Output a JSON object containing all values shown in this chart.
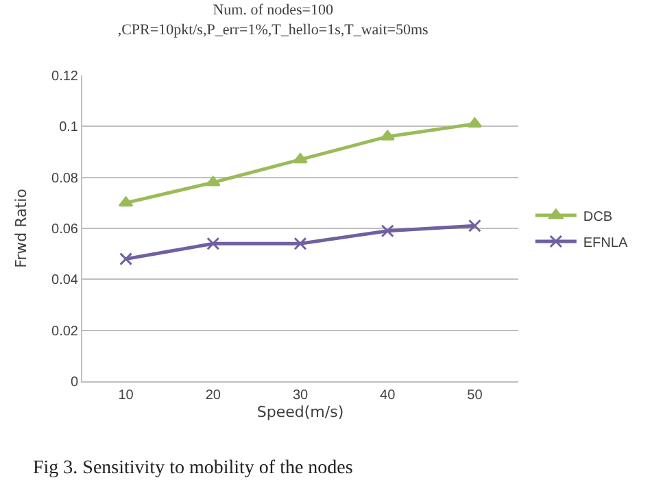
{
  "chart_data": {
    "type": "line",
    "title": "Num. of nodes=100\n,CPR=10pkt/s,P_err=1%,T_hello=1s,T_wait=50ms",
    "xlabel": "Speed(m/s)",
    "ylabel": "Frwd Ratio",
    "categories": [
      "10",
      "20",
      "30",
      "40",
      "50"
    ],
    "series": [
      {
        "name": "DCB",
        "color": "#9bbb59",
        "marker": "triangle",
        "values": [
          0.07,
          0.078,
          0.087,
          0.096,
          0.101
        ]
      },
      {
        "name": "EFNLA",
        "color": "#7060a0",
        "marker": "cross",
        "values": [
          0.048,
          0.054,
          0.054,
          0.059,
          0.061
        ]
      }
    ],
    "ylim": [
      0,
      0.12
    ],
    "yticks": [
      0,
      0.02,
      0.04,
      0.06,
      0.08,
      0.1,
      0.12
    ],
    "grid": "y",
    "legend": "right",
    "annotations": [
      "Fig 3. Sensitivity to mobility of the nodes"
    ]
  }
}
